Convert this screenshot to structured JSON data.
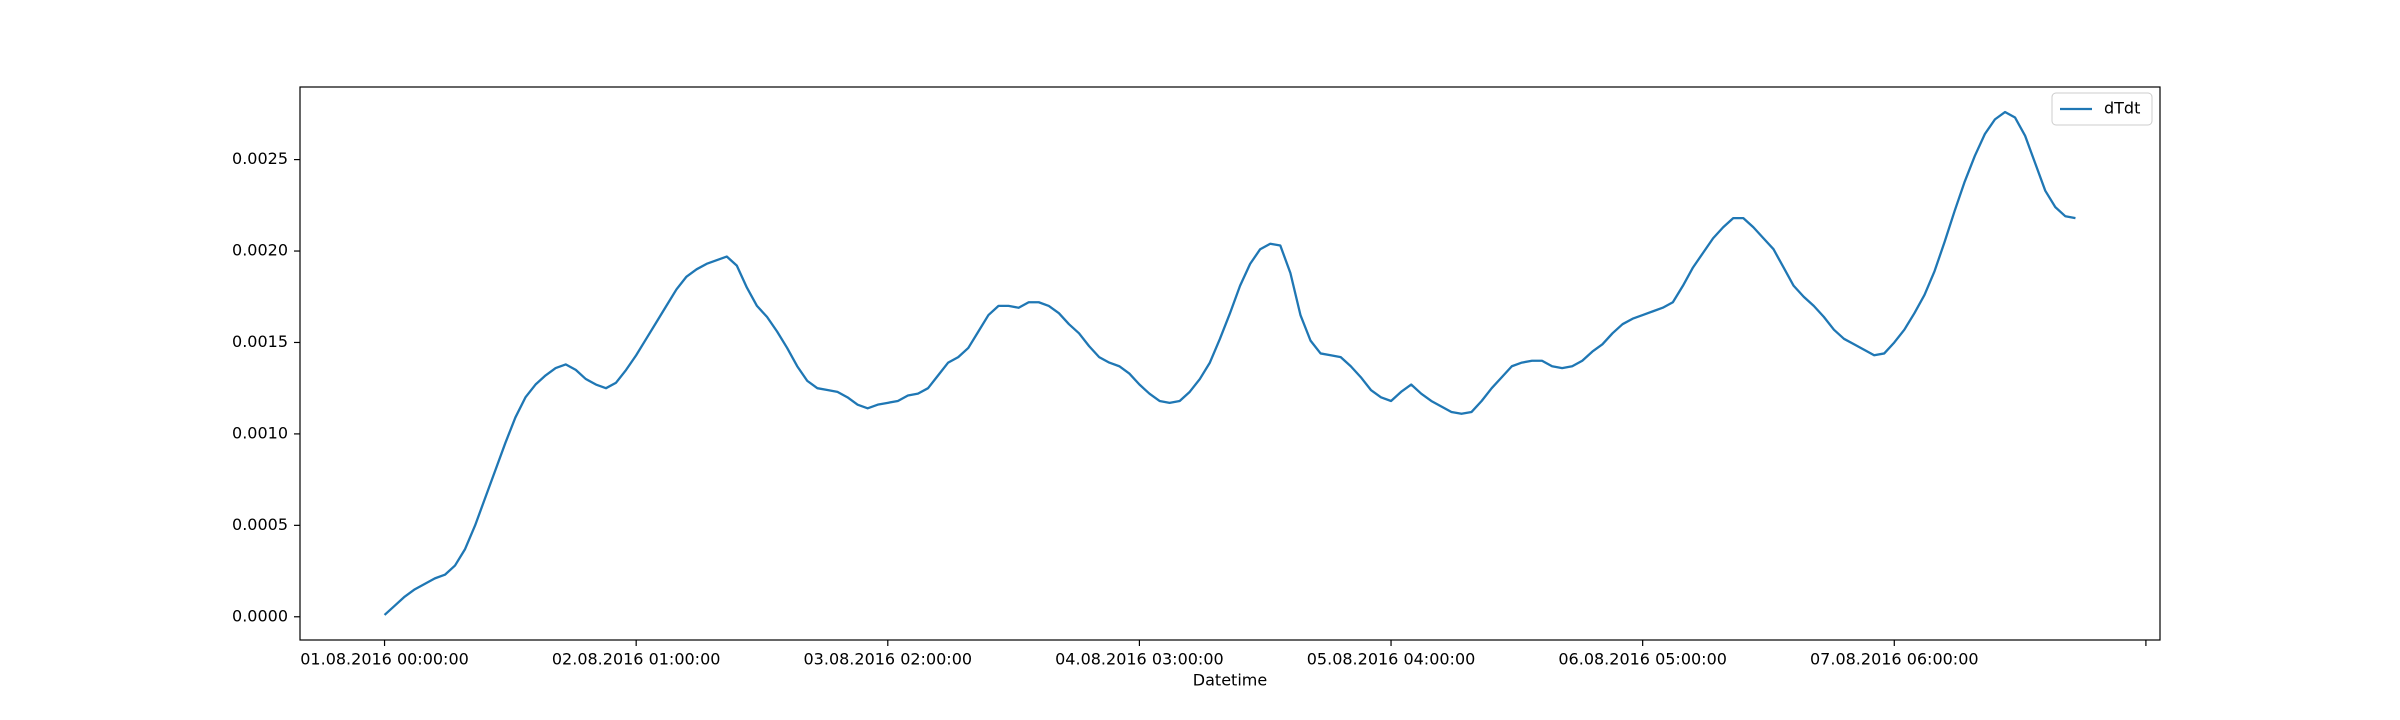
{
  "chart_data": {
    "type": "line",
    "xlabel": "Datetime",
    "legend": "upper right",
    "x": [
      0,
      1,
      2,
      3,
      4,
      5,
      6,
      7,
      8,
      9,
      10,
      11,
      12,
      13,
      14,
      15,
      16,
      17,
      18,
      19,
      20,
      21,
      22,
      23,
      24,
      25,
      26,
      27,
      28,
      29,
      30,
      31,
      32,
      33,
      34,
      35,
      36,
      37,
      38,
      39,
      40,
      41,
      42,
      43,
      44,
      45,
      46,
      47,
      48,
      49,
      50,
      51,
      52,
      53,
      54,
      55,
      56,
      57,
      58,
      59,
      60,
      61,
      62,
      63,
      64,
      65,
      66,
      67,
      68,
      69,
      70,
      71,
      72,
      73,
      74,
      75,
      76,
      77,
      78,
      79,
      80,
      81,
      82,
      83,
      84,
      85,
      86,
      87,
      88,
      89,
      90,
      91,
      92,
      93,
      94,
      95,
      96,
      97,
      98,
      99,
      100,
      101,
      102,
      103,
      104,
      105,
      106,
      107,
      108,
      109,
      110,
      111,
      112,
      113,
      114,
      115,
      116,
      117,
      118,
      119,
      120,
      121,
      122,
      123,
      124,
      125,
      126,
      127,
      128,
      129,
      130,
      131,
      132,
      133,
      134,
      135,
      136,
      137,
      138,
      139,
      140,
      141,
      142,
      143,
      144,
      145,
      146,
      147,
      148,
      149,
      150,
      151,
      152,
      153,
      154,
      155,
      156,
      157,
      158,
      159,
      160,
      161,
      162,
      163,
      164,
      165,
      166,
      167,
      168
    ],
    "series": [
      {
        "name": "dTdt",
        "color": "#1f77b4",
        "values": [
          1e-05,
          6e-05,
          0.00011,
          0.00015,
          0.00018,
          0.00021,
          0.00023,
          0.00028,
          0.00037,
          0.0005,
          0.00065,
          0.0008,
          0.00095,
          0.00109,
          0.0012,
          0.00127,
          0.00132,
          0.00136,
          0.00138,
          0.00135,
          0.0013,
          0.00127,
          0.00125,
          0.00128,
          0.00135,
          0.00143,
          0.00152,
          0.00161,
          0.0017,
          0.00179,
          0.00186,
          0.0019,
          0.00193,
          0.00195,
          0.00197,
          0.00192,
          0.0018,
          0.0017,
          0.00164,
          0.00156,
          0.00147,
          0.00137,
          0.00129,
          0.00125,
          0.00124,
          0.00123,
          0.0012,
          0.00116,
          0.00114,
          0.00116,
          0.00117,
          0.00118,
          0.00121,
          0.00122,
          0.00125,
          0.00132,
          0.00139,
          0.00142,
          0.00147,
          0.00156,
          0.00165,
          0.0017,
          0.0017,
          0.00169,
          0.00172,
          0.00172,
          0.0017,
          0.00166,
          0.0016,
          0.00155,
          0.00148,
          0.00142,
          0.00139,
          0.00137,
          0.00133,
          0.00127,
          0.00122,
          0.00118,
          0.00117,
          0.00118,
          0.00123,
          0.0013,
          0.00139,
          0.00152,
          0.00166,
          0.00181,
          0.00193,
          0.00201,
          0.00204,
          0.00203,
          0.00188,
          0.00165,
          0.00151,
          0.00144,
          0.00143,
          0.00142,
          0.00137,
          0.00131,
          0.00124,
          0.0012,
          0.00118,
          0.00123,
          0.00127,
          0.00122,
          0.00118,
          0.00115,
          0.00112,
          0.00111,
          0.00112,
          0.00118,
          0.00125,
          0.00131,
          0.00137,
          0.00139,
          0.0014,
          0.0014,
          0.00137,
          0.00136,
          0.00137,
          0.0014,
          0.00145,
          0.00149,
          0.00155,
          0.0016,
          0.00163,
          0.00165,
          0.00167,
          0.00169,
          0.00172,
          0.00181,
          0.00191,
          0.00199,
          0.00207,
          0.00213,
          0.00218,
          0.00218,
          0.00213,
          0.00207,
          0.00201,
          0.00191,
          0.00181,
          0.00175,
          0.0017,
          0.00164,
          0.00157,
          0.00152,
          0.00149,
          0.00146,
          0.00143,
          0.00144,
          0.0015,
          0.00157,
          0.00166,
          0.00176,
          0.00189,
          0.00205,
          0.00222,
          0.00238,
          0.00252,
          0.00264,
          0.00272,
          0.00276,
          0.00273,
          0.00263,
          0.00248,
          0.00233,
          0.00224,
          0.00219,
          0.00218
        ]
      }
    ],
    "xlim": [
      -8.4,
      176.4
    ],
    "xticks": [
      {
        "value": 0,
        "label": "01.08.2016 00:00:00"
      },
      {
        "value": 25,
        "label": "02.08.2016 01:00:00"
      },
      {
        "value": 50,
        "label": "03.08.2016 02:00:00"
      },
      {
        "value": 75,
        "label": "04.08.2016 03:00:00"
      },
      {
        "value": 100,
        "label": "05.08.2016 04:00:00"
      },
      {
        "value": 125,
        "label": "06.08.2016 05:00:00"
      },
      {
        "value": 150,
        "label": "07.08.2016 06:00:00"
      },
      {
        "value": 175,
        "label": null
      }
    ],
    "ylim": [
      -0.000127,
      0.002897
    ],
    "yticks": [
      {
        "value": 0,
        "label": "0.0000"
      },
      {
        "value": 0.0005,
        "label": "0.0005"
      },
      {
        "value": 0.001,
        "label": "0.0010"
      },
      {
        "value": 0.0015,
        "label": "0.0015"
      },
      {
        "value": 0.002,
        "label": "0.0020"
      },
      {
        "value": 0.0025,
        "label": "0.0025"
      }
    ]
  }
}
